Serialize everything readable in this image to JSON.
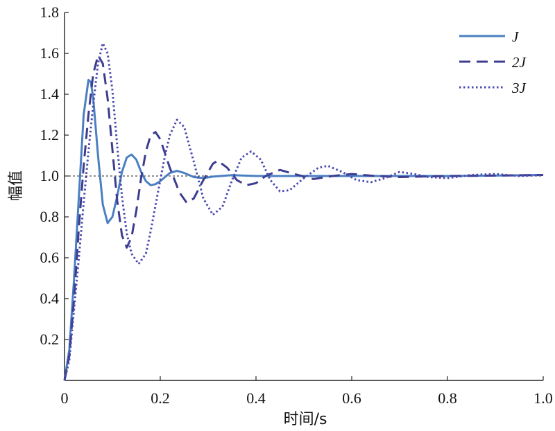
{
  "chart_data": {
    "type": "line",
    "xlabel": "时间/s",
    "ylabel": "幅值",
    "xlim": [
      0,
      1.0
    ],
    "ylim": [
      0,
      1.8
    ],
    "xticks": [
      "0",
      "0.2",
      "0.4",
      "0.6",
      "0.8",
      "1.0"
    ],
    "yticks": [
      "0.2",
      "0.4",
      "0.6",
      "0.8",
      "1.0",
      "1.2",
      "1.4",
      "1.6",
      "1.8"
    ],
    "reference_line": 1.0,
    "legend_position": "top-right",
    "grid": false,
    "series": [
      {
        "name": "J",
        "style": "solid",
        "color": "#4a7fc1",
        "points": [
          [
            0,
            0
          ],
          [
            0.01,
            0.15
          ],
          [
            0.02,
            0.5
          ],
          [
            0.03,
            0.9
          ],
          [
            0.04,
            1.3
          ],
          [
            0.05,
            1.47
          ],
          [
            0.055,
            1.46
          ],
          [
            0.06,
            1.38
          ],
          [
            0.07,
            1.1
          ],
          [
            0.08,
            0.86
          ],
          [
            0.09,
            0.77
          ],
          [
            0.1,
            0.8
          ],
          [
            0.11,
            0.9
          ],
          [
            0.12,
            1.02
          ],
          [
            0.13,
            1.09
          ],
          [
            0.14,
            1.105
          ],
          [
            0.15,
            1.08
          ],
          [
            0.16,
            1.02
          ],
          [
            0.17,
            0.975
          ],
          [
            0.18,
            0.955
          ],
          [
            0.19,
            0.96
          ],
          [
            0.2,
            0.975
          ],
          [
            0.22,
            1.015
          ],
          [
            0.235,
            1.025
          ],
          [
            0.25,
            1.015
          ],
          [
            0.27,
            0.995
          ],
          [
            0.29,
            0.99
          ],
          [
            0.31,
            0.997
          ],
          [
            0.35,
            1.004
          ],
          [
            0.4,
            1.0
          ],
          [
            0.5,
            1.0
          ],
          [
            0.6,
            1.0
          ],
          [
            0.7,
            1.0
          ],
          [
            0.8,
            1.0
          ],
          [
            0.9,
            1.002
          ],
          [
            1.0,
            1.005
          ]
        ]
      },
      {
        "name": "2J",
        "style": "dashed",
        "color": "#3d3d8f",
        "points": [
          [
            0,
            0
          ],
          [
            0.01,
            0.12
          ],
          [
            0.02,
            0.4
          ],
          [
            0.03,
            0.75
          ],
          [
            0.04,
            1.05
          ],
          [
            0.05,
            1.3
          ],
          [
            0.06,
            1.5
          ],
          [
            0.07,
            1.59
          ],
          [
            0.08,
            1.55
          ],
          [
            0.09,
            1.38
          ],
          [
            0.1,
            1.13
          ],
          [
            0.11,
            0.88
          ],
          [
            0.12,
            0.71
          ],
          [
            0.13,
            0.65
          ],
          [
            0.14,
            0.7
          ],
          [
            0.15,
            0.83
          ],
          [
            0.16,
            0.99
          ],
          [
            0.17,
            1.12
          ],
          [
            0.18,
            1.2
          ],
          [
            0.19,
            1.215
          ],
          [
            0.2,
            1.18
          ],
          [
            0.22,
            1.04
          ],
          [
            0.24,
            0.92
          ],
          [
            0.255,
            0.87
          ],
          [
            0.27,
            0.89
          ],
          [
            0.29,
            0.98
          ],
          [
            0.31,
            1.06
          ],
          [
            0.32,
            1.075
          ],
          [
            0.34,
            1.04
          ],
          [
            0.36,
            0.98
          ],
          [
            0.38,
            0.955
          ],
          [
            0.4,
            0.965
          ],
          [
            0.42,
            1.0
          ],
          [
            0.45,
            1.03
          ],
          [
            0.48,
            1.01
          ],
          [
            0.52,
            0.985
          ],
          [
            0.56,
            1.0
          ],
          [
            0.6,
            1.01
          ],
          [
            0.65,
            1.0
          ],
          [
            0.7,
            0.995
          ],
          [
            0.8,
            1.0
          ],
          [
            0.9,
            1.002
          ],
          [
            1.0,
            1.005
          ]
        ]
      },
      {
        "name": "3J",
        "style": "dotted",
        "color": "#4b4bb0",
        "points": [
          [
            0,
            0
          ],
          [
            0.01,
            0.1
          ],
          [
            0.02,
            0.35
          ],
          [
            0.03,
            0.6
          ],
          [
            0.04,
            0.87
          ],
          [
            0.05,
            1.12
          ],
          [
            0.06,
            1.35
          ],
          [
            0.07,
            1.55
          ],
          [
            0.08,
            1.65
          ],
          [
            0.09,
            1.6
          ],
          [
            0.1,
            1.42
          ],
          [
            0.11,
            1.15
          ],
          [
            0.12,
            0.9
          ],
          [
            0.13,
            0.72
          ],
          [
            0.14,
            0.62
          ],
          [
            0.155,
            0.57
          ],
          [
            0.17,
            0.62
          ],
          [
            0.18,
            0.73
          ],
          [
            0.2,
            0.98
          ],
          [
            0.21,
            1.1
          ],
          [
            0.22,
            1.2
          ],
          [
            0.235,
            1.275
          ],
          [
            0.25,
            1.24
          ],
          [
            0.27,
            1.07
          ],
          [
            0.29,
            0.89
          ],
          [
            0.31,
            0.81
          ],
          [
            0.33,
            0.85
          ],
          [
            0.35,
            0.98
          ],
          [
            0.37,
            1.09
          ],
          [
            0.39,
            1.12
          ],
          [
            0.41,
            1.08
          ],
          [
            0.43,
            0.98
          ],
          [
            0.45,
            0.925
          ],
          [
            0.47,
            0.93
          ],
          [
            0.5,
            0.99
          ],
          [
            0.53,
            1.04
          ],
          [
            0.55,
            1.05
          ],
          [
            0.58,
            1.02
          ],
          [
            0.61,
            0.98
          ],
          [
            0.64,
            0.97
          ],
          [
            0.67,
            0.99
          ],
          [
            0.7,
            1.02
          ],
          [
            0.73,
            1.01
          ],
          [
            0.76,
            0.995
          ],
          [
            0.8,
            0.99
          ],
          [
            0.85,
            1.005
          ],
          [
            0.9,
            1.01
          ],
          [
            0.95,
            1.0
          ],
          [
            1.0,
            1.005
          ]
        ]
      }
    ]
  }
}
